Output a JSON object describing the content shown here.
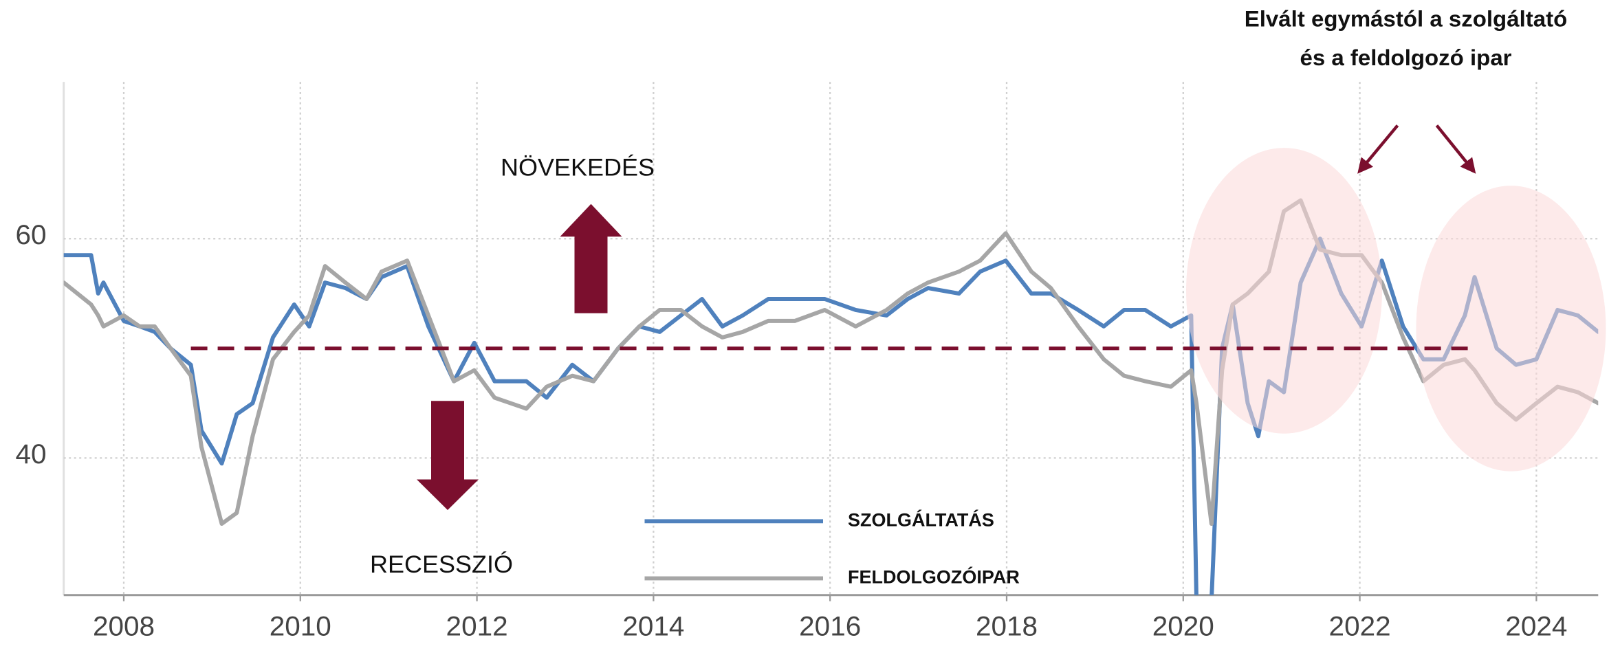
{
  "chart_data": {
    "type": "line",
    "x": [
      2007.32,
      2007.63,
      2007.71,
      2007.77,
      2008.0,
      2008.18,
      2008.35,
      2008.53,
      2008.76,
      2008.88,
      2009.11,
      2009.28,
      2009.46,
      2009.69,
      2009.93,
      2010.1,
      2010.28,
      2010.51,
      2010.75,
      2010.92,
      2011.21,
      2011.45,
      2011.74,
      2011.97,
      2012.2,
      2012.56,
      2012.79,
      2013.08,
      2013.32,
      2013.6,
      2013.84,
      2014.07,
      2014.31,
      2014.55,
      2014.78,
      2015.01,
      2015.3,
      2015.6,
      2015.94,
      2016.29,
      2016.64,
      2016.88,
      2017.11,
      2017.46,
      2017.7,
      2017.99,
      2018.28,
      2018.5,
      2018.81,
      2019.1,
      2019.33,
      2019.57,
      2019.86,
      2020.09,
      2020.15,
      2020.32,
      2020.44,
      2020.56,
      2020.73,
      2020.85,
      2020.97,
      2021.14,
      2021.33,
      2021.55,
      2021.79,
      2022.02,
      2022.25,
      2022.49,
      2022.72,
      2022.95,
      2023.19,
      2023.3,
      2023.55,
      2023.77,
      2024.0,
      2024.24,
      2024.47,
      2024.7
    ],
    "series": [
      {
        "name": "SZOLGÁLTATÁS",
        "color": "#4f81bd",
        "values": [
          58.5,
          58.5,
          55,
          56,
          52.5,
          52,
          51.5,
          50,
          48.5,
          42.5,
          39.5,
          44,
          45,
          51,
          54,
          52,
          56,
          55.5,
          54.5,
          56.5,
          57.5,
          52,
          47,
          50.5,
          47,
          47,
          45.5,
          48.5,
          47,
          50,
          52,
          51.5,
          53,
          54.5,
          52,
          53,
          54.5,
          54.5,
          54.5,
          53.5,
          53,
          54.5,
          55.5,
          55,
          57,
          58,
          55,
          55,
          53.5,
          52,
          53.5,
          53.5,
          52,
          53,
          27,
          27,
          50,
          54,
          45,
          42,
          47,
          46,
          56,
          60,
          55,
          52,
          58,
          52,
          49,
          49,
          53,
          56.5,
          50,
          48.5,
          49,
          53.5,
          53,
          51.5
        ]
      },
      {
        "name": "FELDOLGOZÓIPAR",
        "color": "#a6a6a6",
        "values": [
          56,
          54,
          53,
          52,
          53,
          52,
          52,
          50,
          47.5,
          41,
          34,
          35,
          42,
          49,
          51.5,
          53,
          57.5,
          56,
          54.5,
          57,
          58,
          53,
          47,
          48,
          45.5,
          44.5,
          46.5,
          47.5,
          47,
          50,
          52,
          53.5,
          53.5,
          52,
          51,
          51.5,
          52.5,
          52.5,
          53.5,
          52,
          53.5,
          55,
          56,
          57,
          58,
          60.5,
          57,
          55.5,
          52,
          49,
          47.5,
          47,
          46.5,
          48,
          45,
          34,
          48,
          54,
          55,
          56,
          57,
          62.5,
          63.5,
          59,
          58.5,
          58.5,
          56,
          51,
          47,
          48.5,
          49,
          48,
          45,
          43.5,
          45,
          46.5,
          46,
          45
        ]
      }
    ],
    "xlim": [
      2007.32,
      2024.7
    ],
    "ylim": [
      27.5,
      74.3
    ],
    "xticks": [
      2008,
      2010,
      2012,
      2014,
      2016,
      2018,
      2020,
      2022,
      2024
    ],
    "yticks": [
      40,
      60
    ],
    "grid": true,
    "threshold": {
      "value": 50,
      "x": [
        2008.76,
        2023.3
      ],
      "color": "#7b0f2e"
    },
    "annotations": {
      "growth": "NÖVEKEDÉS",
      "recession": "RECESSZIÓ",
      "note": "Elvált egymástól a szolgáltató és a feldolgozó ipar"
    }
  }
}
